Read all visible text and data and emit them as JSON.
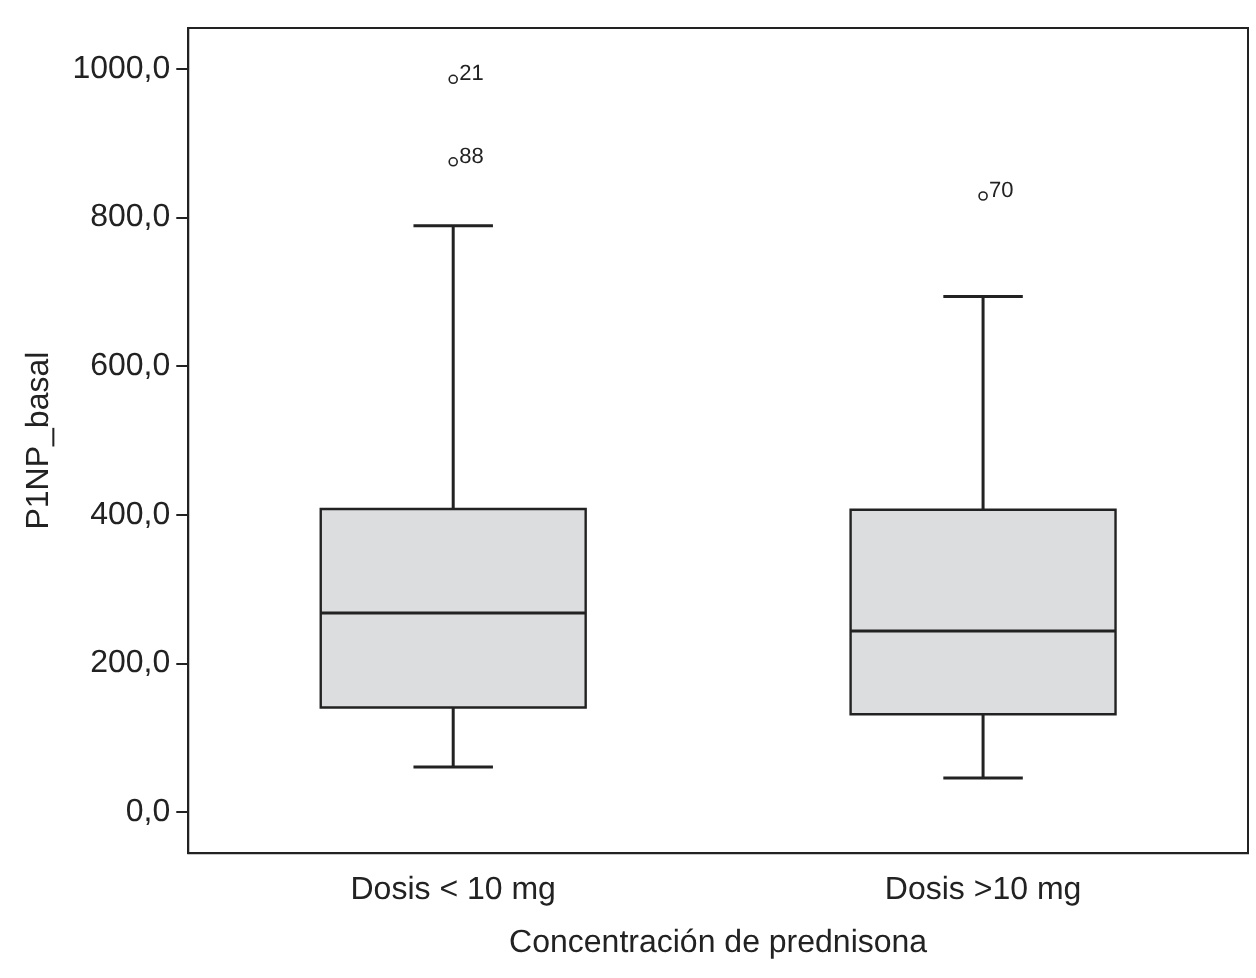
{
  "chart_data": {
    "type": "box",
    "xlabel": "Concentración de prednisona",
    "ylabel": "P1NP_basal",
    "categories": [
      "Dosis < 10 mg",
      "Dosis >10 mg"
    ],
    "series": [
      {
        "color": "#dcdddf",
        "boxes": [
          {
            "low": 61,
            "q1": 141,
            "median": 268,
            "q3": 408,
            "high": 789,
            "outliers": [
              986,
              875
            ]
          },
          {
            "low": 46,
            "q1": 132,
            "median": 244,
            "q3": 407,
            "high": 694,
            "outliers": [
              829
            ]
          }
        ]
      }
    ],
    "ylim": [
      -55,
      1055
    ],
    "yticks": [
      {
        "value": 0,
        "label": "0,0"
      },
      {
        "value": 200,
        "label": "200,0"
      },
      {
        "value": 400,
        "label": "400,0"
      },
      {
        "value": 600,
        "label": "600,0"
      },
      {
        "value": 800,
        "label": "800,0"
      },
      {
        "value": 1000,
        "label": "1000,0"
      }
    ],
    "annotations": [
      "21",
      "88",
      "70"
    ],
    "grid": false,
    "legend": false
  }
}
